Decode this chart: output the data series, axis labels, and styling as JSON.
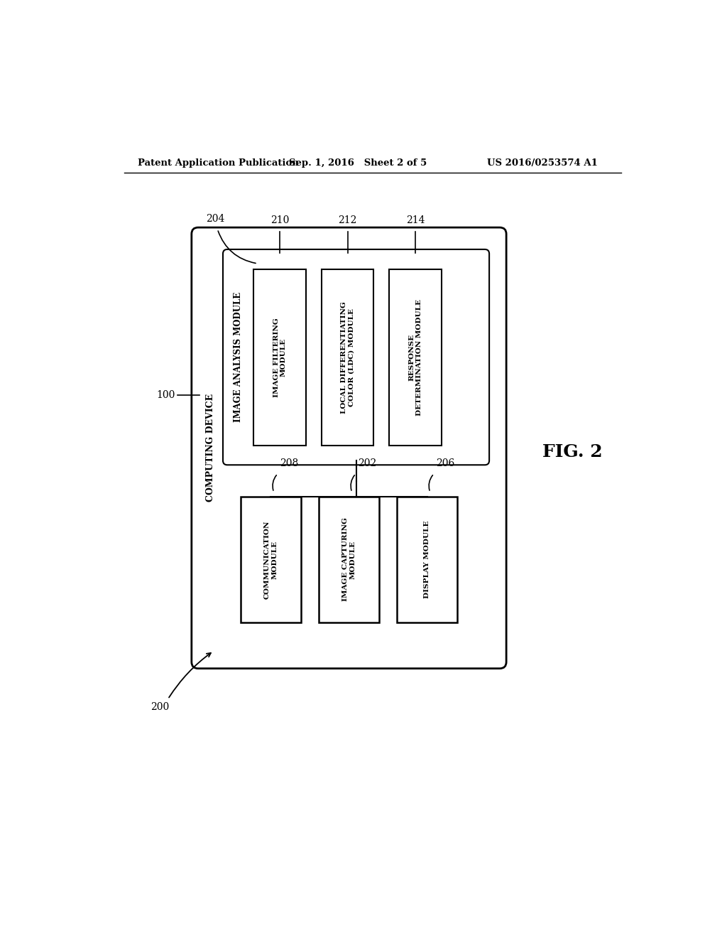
{
  "bg_color": "#ffffff",
  "header_left": "Patent Application Publication",
  "header_mid": "Sep. 1, 2016   Sheet 2 of 5",
  "header_right": "US 2016/0253574 A1",
  "fig_label": "FIG. 2",
  "outer_box_label": "100",
  "outer_box_sublabel": "COMPUTING DEVICE",
  "device_box_label": "200",
  "top_group_label": "204",
  "top_group_title": "IMAGE ANALYSIS MODULE",
  "top_modules": [
    {
      "label": "210",
      "text": "IMAGE FILTERING\nMODULE"
    },
    {
      "label": "212",
      "text": "LOCAL DIFFERENTIATING\nCOLOR (LDC) MODULE"
    },
    {
      "label": "214",
      "text": "RESPONSE\nDETERMINATION MODULE"
    }
  ],
  "bottom_modules": [
    {
      "label": "208",
      "text": "COMMUNICATION\nMODULE"
    },
    {
      "label": "202",
      "text": "IMAGE CAPTURING\nMODULE"
    },
    {
      "label": "206",
      "text": "DISPLAY MODULE"
    }
  ]
}
